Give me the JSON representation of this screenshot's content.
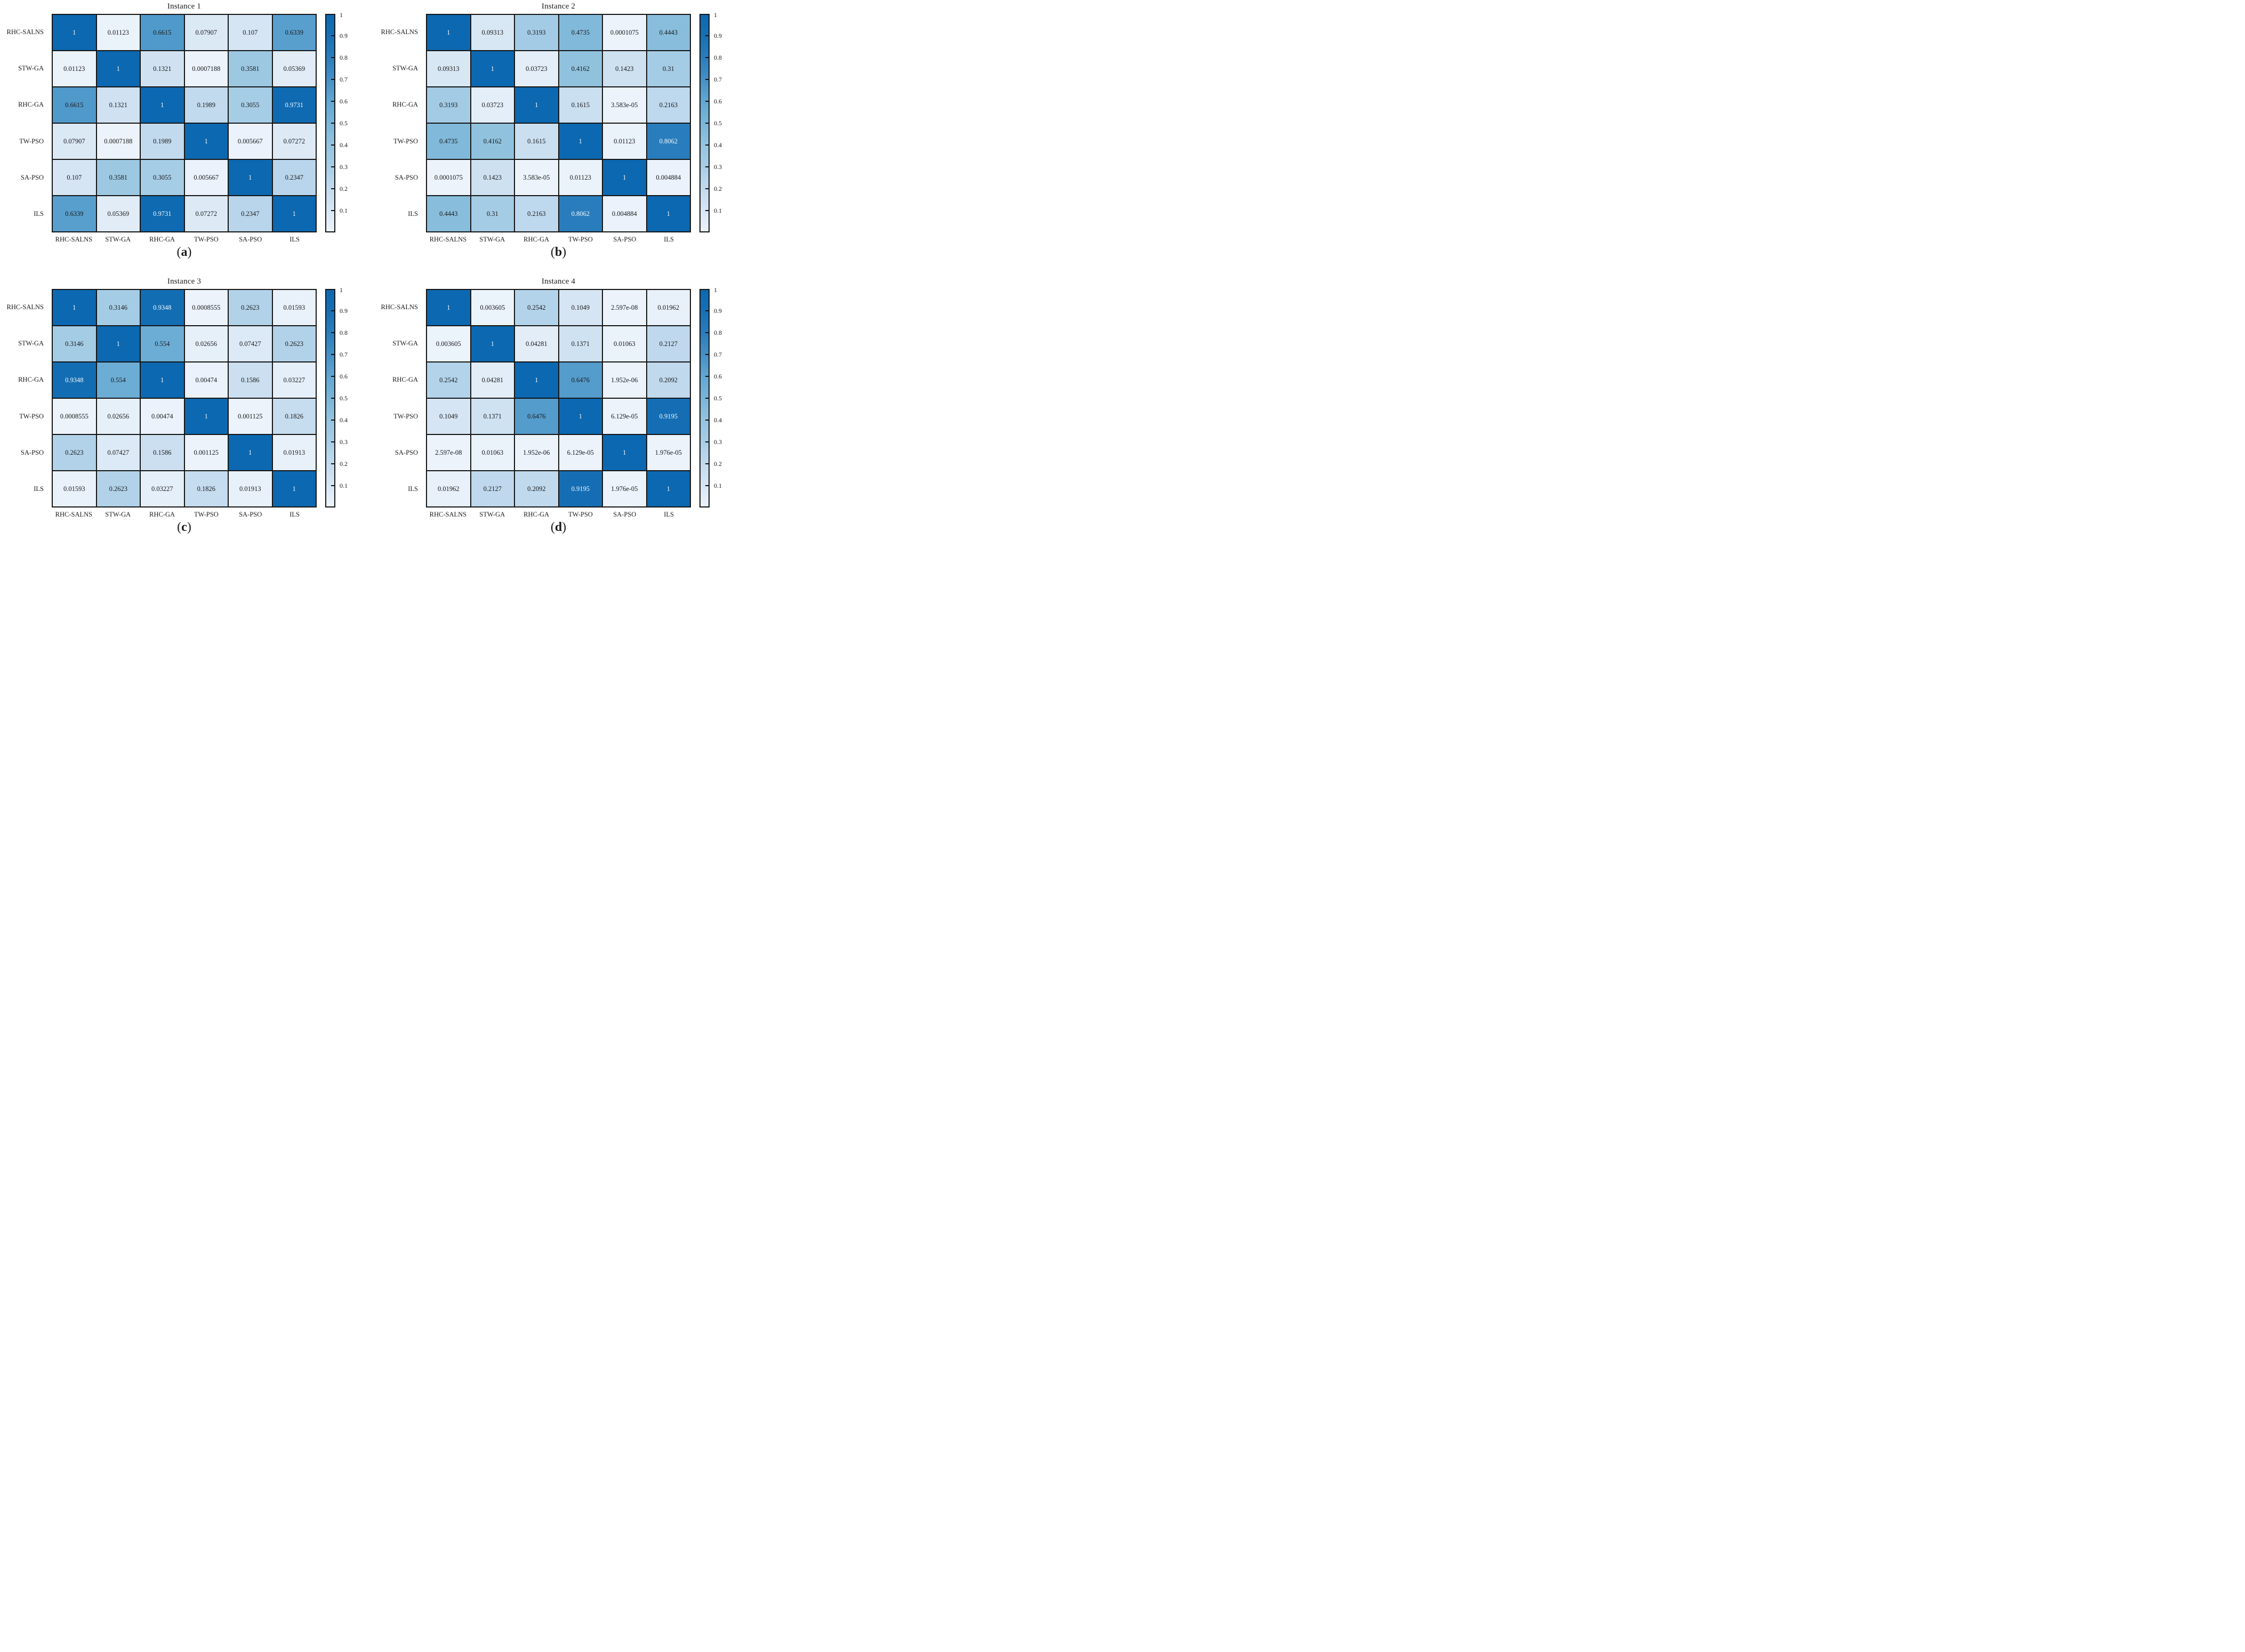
{
  "figure": {
    "background": "#ffffff",
    "grid_line_color": "#141414",
    "text_color": "#1a1a1a",
    "cell_text_light": "#f5f8fb"
  },
  "colormap": {
    "name": "Blues",
    "white_text_threshold": 0.75,
    "stops": [
      [
        0.0,
        "#ecf3fb"
      ],
      [
        0.1,
        "#d7e6f4"
      ],
      [
        0.2,
        "#c2daee"
      ],
      [
        0.3,
        "#a7cde6"
      ],
      [
        0.4,
        "#94c4df"
      ],
      [
        0.5,
        "#7ab5d8"
      ],
      [
        0.6,
        "#61a7d2"
      ],
      [
        0.7,
        "#4690c6"
      ],
      [
        0.8,
        "#2b7ebc"
      ],
      [
        0.9,
        "#1770b5"
      ],
      [
        1.0,
        "#0c68b0"
      ]
    ]
  },
  "colorbar": {
    "top_label": "1",
    "tick_labels": [
      "0.9",
      "0.8",
      "0.7",
      "0.6",
      "0.5",
      "0.4",
      "0.3",
      "0.2",
      "0.1"
    ]
  },
  "chart_data": [
    {
      "type": "heatmap",
      "title": "Instance 1",
      "caption": {
        "prefix": "(",
        "letter": "a",
        "suffix": ")"
      },
      "categories": [
        "RHC-SALNS",
        "STW-GA",
        "RHC-GA",
        "TW-PSO",
        "SA-PSO",
        "ILS"
      ],
      "value_range": [
        0,
        1
      ],
      "legend_position": "right-colorbar",
      "matrix": [
        [
          "1",
          "0.01123",
          "0.6615",
          "0.07907",
          "0.107",
          "0.6339"
        ],
        [
          "0.01123",
          "1",
          "0.1321",
          "0.0007188",
          "0.3581",
          "0.05369"
        ],
        [
          "0.6615",
          "0.1321",
          "1",
          "0.1989",
          "0.3055",
          "0.9731"
        ],
        [
          "0.07907",
          "0.0007188",
          "0.1989",
          "1",
          "0.005667",
          "0.07272"
        ],
        [
          "0.107",
          "0.3581",
          "0.3055",
          "0.005667",
          "1",
          "0.2347"
        ],
        [
          "0.6339",
          "0.05369",
          "0.9731",
          "0.07272",
          "0.2347",
          "1"
        ]
      ]
    },
    {
      "type": "heatmap",
      "title": "Instance 2",
      "caption": {
        "prefix": "(",
        "letter": "b",
        "suffix": ")"
      },
      "categories": [
        "RHC-SALNS",
        "STW-GA",
        "RHC-GA",
        "TW-PSO",
        "SA-PSO",
        "ILS"
      ],
      "value_range": [
        0,
        1
      ],
      "legend_position": "right-colorbar",
      "matrix": [
        [
          "1",
          "0.09313",
          "0.3193",
          "0.4735",
          "0.0001075",
          "0.4443"
        ],
        [
          "0.09313",
          "1",
          "0.03723",
          "0.4162",
          "0.1423",
          "0.31"
        ],
        [
          "0.3193",
          "0.03723",
          "1",
          "0.1615",
          "3.583e-05",
          "0.2163"
        ],
        [
          "0.4735",
          "0.4162",
          "0.1615",
          "1",
          "0.01123",
          "0.8062"
        ],
        [
          "0.0001075",
          "0.1423",
          "3.583e-05",
          "0.01123",
          "1",
          "0.004884"
        ],
        [
          "0.4443",
          "0.31",
          "0.2163",
          "0.8062",
          "0.004884",
          "1"
        ]
      ]
    },
    {
      "type": "heatmap",
      "title": "Instance 3",
      "caption": {
        "prefix": "(",
        "letter": "c",
        "suffix": ")"
      },
      "categories": [
        "RHC-SALNS",
        "STW-GA",
        "RHC-GA",
        "TW-PSO",
        "SA-PSO",
        "ILS"
      ],
      "value_range": [
        0,
        1
      ],
      "legend_position": "right-colorbar",
      "matrix": [
        [
          "1",
          "0.3146",
          "0.9348",
          "0.0008555",
          "0.2623",
          "0.01593"
        ],
        [
          "0.3146",
          "1",
          "0.554",
          "0.02656",
          "0.07427",
          "0.2623"
        ],
        [
          "0.9348",
          "0.554",
          "1",
          "0.00474",
          "0.1586",
          "0.03227"
        ],
        [
          "0.0008555",
          "0.02656",
          "0.00474",
          "1",
          "0.001125",
          "0.1826"
        ],
        [
          "0.2623",
          "0.07427",
          "0.1586",
          "0.001125",
          "1",
          "0.01913"
        ],
        [
          "0.01593",
          "0.2623",
          "0.03227",
          "0.1826",
          "0.01913",
          "1"
        ]
      ]
    },
    {
      "type": "heatmap",
      "title": "Instance 4",
      "caption": {
        "prefix": "(",
        "letter": "d",
        "suffix": ")"
      },
      "categories": [
        "RHC-SALNS",
        "STW-GA",
        "RHC-GA",
        "TW-PSO",
        "SA-PSO",
        "ILS"
      ],
      "value_range": [
        0,
        1
      ],
      "legend_position": "right-colorbar",
      "matrix": [
        [
          "1",
          "0.003605",
          "0.2542",
          "0.1049",
          "2.597e-08",
          "0.01962"
        ],
        [
          "0.003605",
          "1",
          "0.04281",
          "0.1371",
          "0.01063",
          "0.2127"
        ],
        [
          "0.2542",
          "0.04281",
          "1",
          "0.6476",
          "1.952e-06",
          "0.2092"
        ],
        [
          "0.1049",
          "0.1371",
          "0.6476",
          "1",
          "6.129e-05",
          "0.9195"
        ],
        [
          "2.597e-08",
          "0.01063",
          "1.952e-06",
          "6.129e-05",
          "1",
          "1.976e-05"
        ],
        [
          "0.01962",
          "0.2127",
          "0.2092",
          "0.9195",
          "1.976e-05",
          "1"
        ]
      ]
    }
  ]
}
